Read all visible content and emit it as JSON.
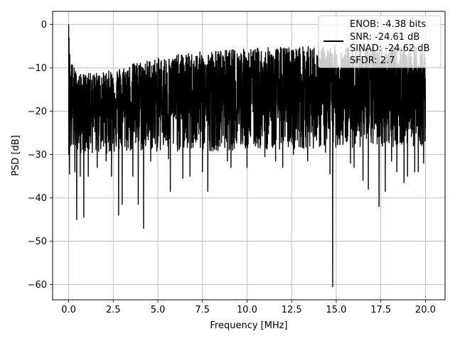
{
  "chart_data": {
    "type": "line",
    "xlabel": "Frequency [MHz]",
    "ylabel": "PSD [dB]",
    "xlim": [
      -0.9,
      21.1
    ],
    "ylim": [
      -63.5,
      3.0
    ],
    "xticks": [
      0.0,
      2.5,
      5.0,
      7.5,
      10.0,
      12.5,
      15.0,
      17.5,
      20.0
    ],
    "xtick_labels": [
      "0.0",
      "2.5",
      "5.0",
      "7.5",
      "10.0",
      "12.5",
      "15.0",
      "17.5",
      "20.0"
    ],
    "yticks": [
      0,
      -10,
      -20,
      -30,
      -40,
      -50,
      -60
    ],
    "ytick_labels": [
      "0",
      "−10",
      "−20",
      "−30",
      "−40",
      "−50",
      "−60"
    ],
    "grid": true,
    "legend_position": "top-right",
    "series": [
      {
        "color": "#000000",
        "style": "noisy-dense",
        "x_range": [
          0.0,
          20.0
        ],
        "upper_envelope": [
          [
            0.0,
            0.0
          ],
          [
            0.1,
            -8.0
          ],
          [
            0.5,
            -11.5
          ],
          [
            2.0,
            -11.0
          ],
          [
            4.0,
            -8.5
          ],
          [
            6.0,
            -7.0
          ],
          [
            8.0,
            -6.0
          ],
          [
            10.0,
            -5.5
          ],
          [
            13.0,
            -5.0
          ],
          [
            16.0,
            -5.0
          ],
          [
            20.0,
            -5.0
          ]
        ],
        "center_level": [
          [
            0.0,
            -18.0
          ],
          [
            5.0,
            -17.5
          ],
          [
            10.0,
            -17.0
          ],
          [
            15.0,
            -17.0
          ],
          [
            20.0,
            -17.0
          ]
        ],
        "lower_envelope": [
          [
            0.0,
            -30.0
          ],
          [
            20.0,
            -28.0
          ]
        ],
        "dips": [
          [
            0.05,
            -34.5
          ],
          [
            0.35,
            -34.0
          ],
          [
            0.45,
            -45.0
          ],
          [
            0.65,
            -35.0
          ],
          [
            0.85,
            -44.5
          ],
          [
            1.1,
            -35.0
          ],
          [
            1.6,
            -33.0
          ],
          [
            2.1,
            -31.5
          ],
          [
            2.4,
            -35.0
          ],
          [
            2.8,
            -44.0
          ],
          [
            3.0,
            -41.5
          ],
          [
            3.6,
            -35.0
          ],
          [
            3.9,
            -41.5
          ],
          [
            4.2,
            -47.0
          ],
          [
            4.6,
            -31.5
          ],
          [
            5.6,
            -31.0
          ],
          [
            5.7,
            -38.5
          ],
          [
            6.4,
            -35.5
          ],
          [
            6.8,
            -35.0
          ],
          [
            7.5,
            -34.0
          ],
          [
            7.8,
            -38.5
          ],
          [
            8.9,
            -31.5
          ],
          [
            9.1,
            -33.0
          ],
          [
            10.0,
            -33.0
          ],
          [
            11.0,
            -30.5
          ],
          [
            11.6,
            -31.5
          ],
          [
            12.0,
            -33.0
          ],
          [
            12.6,
            -30.0
          ],
          [
            13.4,
            -31.5
          ],
          [
            14.4,
            -29.5
          ],
          [
            14.65,
            -34.5
          ],
          [
            14.8,
            -60.5
          ],
          [
            15.8,
            -32.0
          ],
          [
            16.0,
            -33.0
          ],
          [
            16.5,
            -36.0
          ],
          [
            16.8,
            -38.0
          ],
          [
            17.4,
            -42.0
          ],
          [
            17.75,
            -38.5
          ],
          [
            18.1,
            -31.5
          ],
          [
            18.4,
            -34.0
          ],
          [
            18.8,
            -36.5
          ],
          [
            19.0,
            -35.0
          ],
          [
            19.4,
            -34.0
          ],
          [
            19.6,
            -34.0
          ],
          [
            19.9,
            -32.0
          ]
        ],
        "peaks": [
          [
            0.0,
            0.0
          ]
        ]
      }
    ],
    "legend": {
      "lines": [
        "ENOB: -4.38 bits",
        "SNR: -24.61 dB",
        "SINAD: -24.62 dB",
        "SFDR: 2.7"
      ]
    }
  }
}
